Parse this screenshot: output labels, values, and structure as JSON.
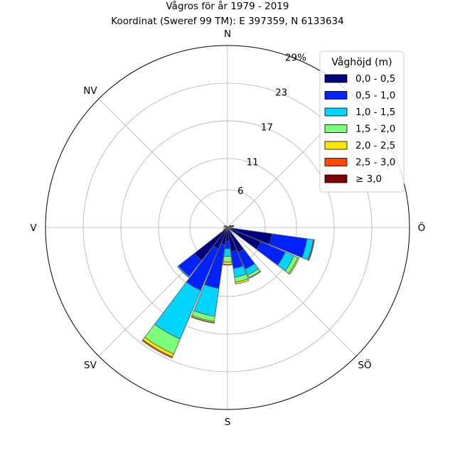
{
  "chart_data": {
    "type": "wind-rose",
    "title": "Vågros för år 1979 - 2019",
    "subtitle": "Koordinat (Sweref 99 TM): E 397359, N 6133634",
    "directions": [
      "N",
      "NV",
      "V",
      "SV",
      "S",
      "SÖ",
      "Ö",
      "NÖ"
    ],
    "radial_ticks": [
      "6",
      "11",
      "17",
      "23",
      "29%"
    ],
    "radial_tick_values": [
      6,
      11,
      17,
      23,
      29
    ],
    "rmax": 29,
    "grid": true,
    "legend": {
      "title": "Våghöjd (m)",
      "placement": "top-right",
      "entries": [
        {
          "label": "0,0 - 0,5",
          "color": "#00007f"
        },
        {
          "label": "0,5 - 1,0",
          "color": "#0022ff"
        },
        {
          "label": "1,0 - 1,5",
          "color": "#00d4ff"
        },
        {
          "label": "1,5 - 2,0",
          "color": "#7cff79"
        },
        {
          "label": "2,0 - 2,5",
          "color": "#ffe600"
        },
        {
          "label": "2,5 - 3,0",
          "color": "#ff4800"
        },
        {
          "label": "≥ 3,0",
          "color": "#7f0000"
        }
      ]
    },
    "sectors": [
      {
        "bearing": 60,
        "cumulative": [
          0.5,
          0.6
        ]
      },
      {
        "bearing": 75,
        "cumulative": [
          0.9,
          1.0
        ]
      },
      {
        "bearing": 105,
        "cumulative": [
          7.2,
          12.8,
          13.8,
          13.9,
          14.0
        ]
      },
      {
        "bearing": 120,
        "cumulative": [
          5.8,
          10.0,
          11.5,
          12.2,
          12.4
        ]
      },
      {
        "bearing": 150,
        "cumulative": [
          4.3,
          7.2,
          8.2,
          8.7,
          8.8
        ]
      },
      {
        "bearing": 165,
        "cumulative": [
          3.9,
          6.6,
          8.0,
          8.8,
          9.1
        ]
      },
      {
        "bearing": 180,
        "cumulative": [
          2.2,
          3.4,
          4.6,
          5.5,
          5.9,
          6.0
        ]
      },
      {
        "bearing": 195,
        "cumulative": [
          2.8,
          9.8,
          14.3,
          15.1,
          15.3,
          15.4
        ]
      },
      {
        "bearing": 210,
        "cumulative": [
          3.7,
          10.9,
          19.3,
          21.9,
          22.4,
          22.6
        ]
      },
      {
        "bearing": 225,
        "cumulative": [
          6.7,
          9.9,
          10.1
        ]
      },
      {
        "bearing": 240,
        "cumulative": [
          0.6,
          0.7
        ]
      },
      {
        "bearing": 285,
        "cumulative": [
          0.5,
          0.6
        ]
      },
      {
        "bearing": 300,
        "cumulative": [
          0.4,
          0.5
        ]
      },
      {
        "bearing": 330,
        "cumulative": [
          0.3
        ]
      }
    ]
  }
}
